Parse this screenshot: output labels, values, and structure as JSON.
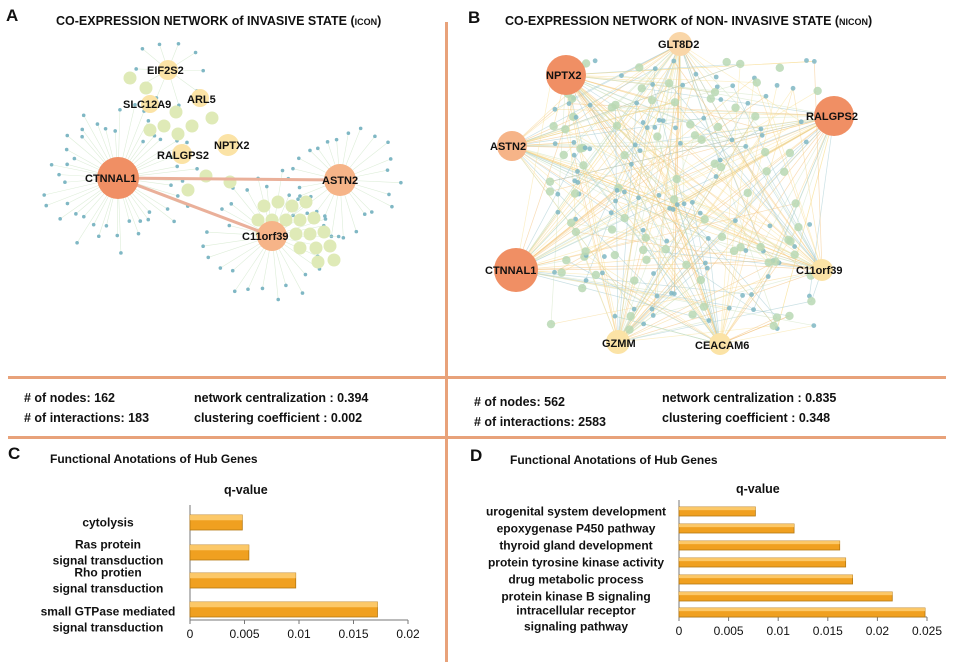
{
  "panels": {
    "a": {
      "letter": "A",
      "title_main": "CO-EXPRESSION NETWORK of INVASIVE STATE (",
      "title_abbr": "ICON",
      "title_close": ")",
      "nodes": [
        "EIF2S2",
        "SLC12A9",
        "ARL5",
        "NPTX2",
        "RALGPS2",
        "CTNNAL1",
        "ASTN2",
        "C11orf39"
      ],
      "stats": {
        "nodes": "# of nodes: 162",
        "interactions": "# of interactions: 183",
        "centralization": "network centralization : 0.394",
        "clustering": "clustering coefficient : 0.002"
      }
    },
    "b": {
      "letter": "B",
      "title_main": "CO-EXPRESSION NETWORK of NON- INVASIVE STATE  (",
      "title_abbr": "NICON",
      "title_close": ")",
      "nodes": [
        "GLT8D2",
        "NPTX2",
        "RALGPS2",
        "ASTN2",
        "CTNNAL1",
        "C11orf39",
        "GZMM",
        "CEACAM6"
      ],
      "stats": {
        "nodes": "# of nodes: 562",
        "interactions": "# of interactions: 2583",
        "centralization": "network centralization : 0.835",
        "clustering": "clustering coefficient : 0.348"
      }
    },
    "c": {
      "letter": "C"
    },
    "d": {
      "letter": "D"
    }
  },
  "colors": {
    "divider": "#e8a27a",
    "bar_fill": "#f0a020",
    "bar_edge": "#b57812",
    "hub_node": "#f08f64",
    "small_node": "#7fb7c4",
    "mid_node": "#dfeab7"
  },
  "chart_data": [
    {
      "type": "bar",
      "orientation": "horizontal",
      "title": "Functional Anotations of Hub Genes",
      "value_label": "q-value",
      "categories": [
        [
          "cytolysis"
        ],
        [
          "Ras protein",
          "signal transduction"
        ],
        [
          "Rho protien",
          "signal transduction"
        ],
        [
          "small GTPase mediated",
          "signal transduction"
        ]
      ],
      "values": [
        0.0048,
        0.0054,
        0.0097,
        0.0172
      ],
      "xlim": [
        0,
        0.02
      ],
      "ticks": [
        0,
        0.005,
        0.01,
        0.015,
        0.02
      ],
      "tick_labels": [
        "0",
        "0.005",
        "0.01",
        "0.015",
        "0.02"
      ]
    },
    {
      "type": "bar",
      "orientation": "horizontal",
      "title": "Functional Anotations of Hub Genes",
      "value_label": "q-value",
      "categories": [
        [
          "urogenital system development"
        ],
        [
          "epoxygenase P450 pathway"
        ],
        [
          "thyroid gland development"
        ],
        [
          "protein tyrosine kinase activity"
        ],
        [
          "drug metabolic process"
        ],
        [
          "protein kinase B signaling"
        ],
        [
          "intracellular receptor",
          "signaling pathway"
        ]
      ],
      "values": [
        0.0077,
        0.0116,
        0.0162,
        0.0168,
        0.0175,
        0.0215,
        0.0248
      ],
      "xlim": [
        0,
        0.025
      ],
      "ticks": [
        0,
        0.005,
        0.01,
        0.015,
        0.02,
        0.025
      ],
      "tick_labels": [
        "0",
        "0.005",
        "0.01",
        "0.015",
        "0.02",
        "0.025"
      ]
    }
  ]
}
